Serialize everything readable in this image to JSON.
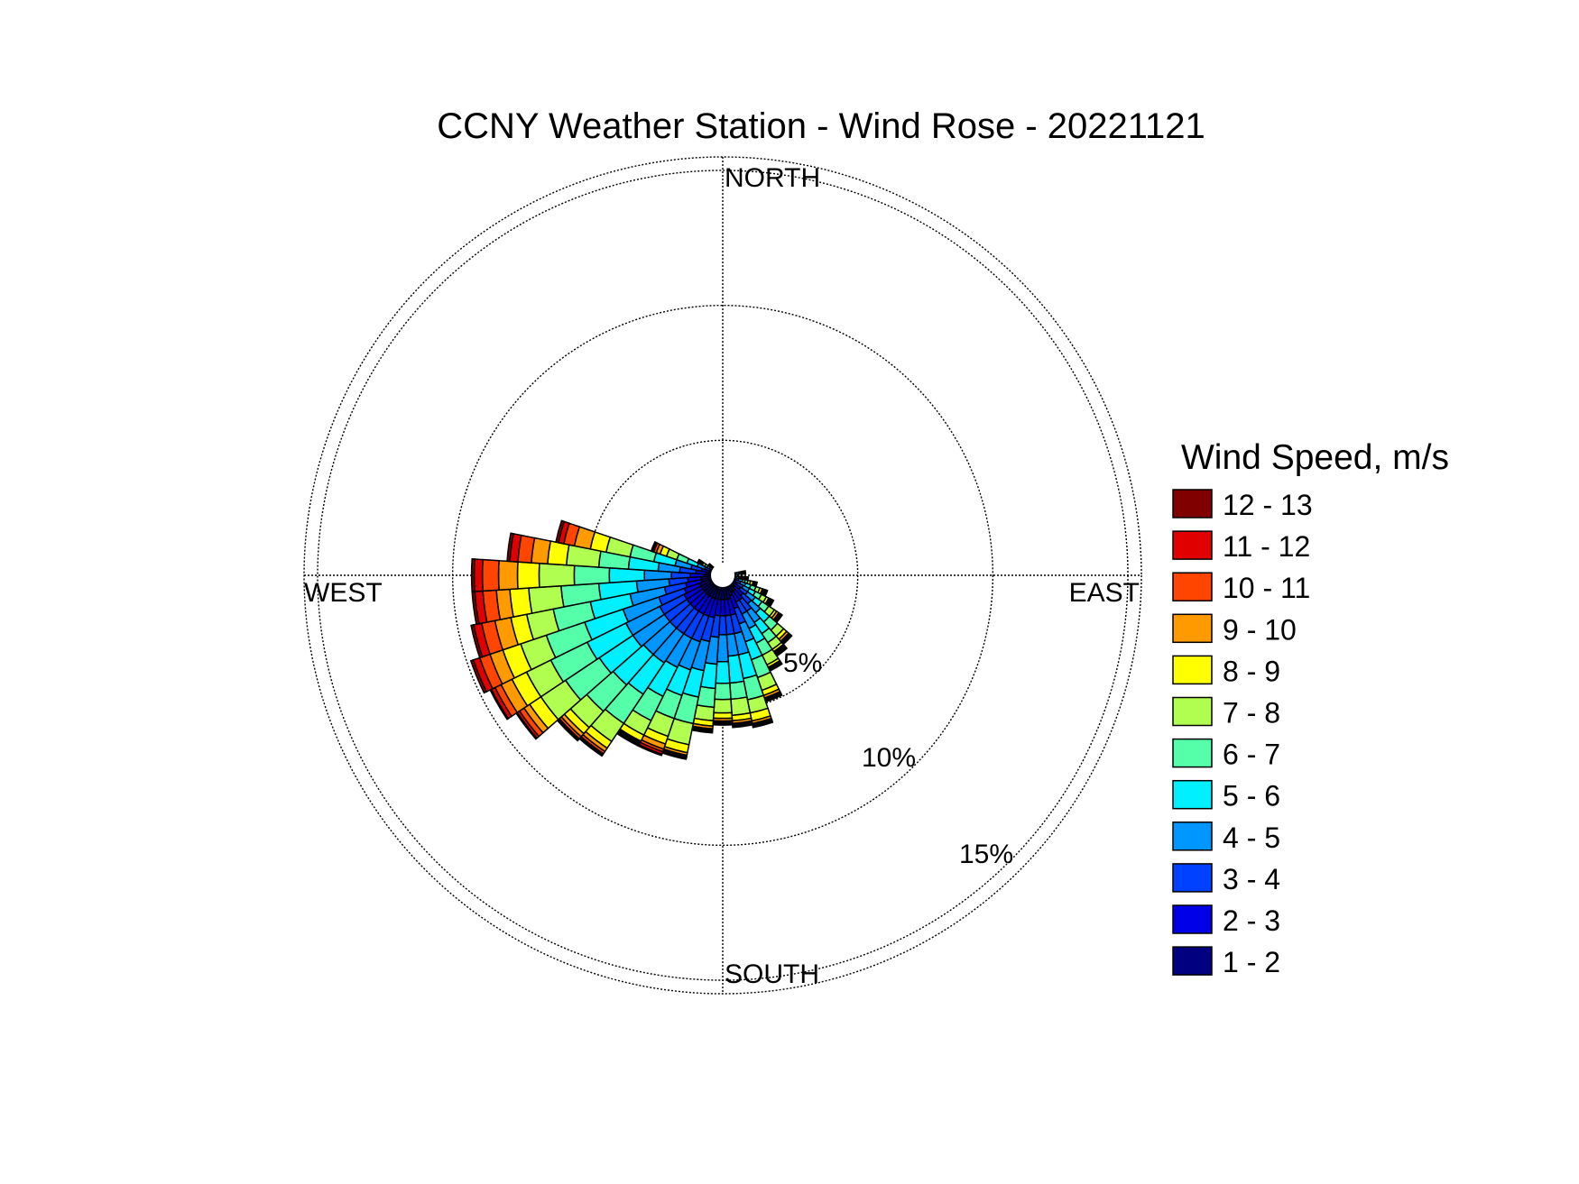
{
  "chart_data": {
    "type": "wind-rose",
    "title": "CCNY Weather Station - Wind Rose - 20221121",
    "directions": {
      "north": "NORTH",
      "south": "SOUTH",
      "east": "EAST",
      "west": "WEST"
    },
    "radial_axis": {
      "unit": "%",
      "ticks": [
        5,
        10,
        15
      ],
      "tick_labels": [
        "5%",
        "10%",
        "15%"
      ],
      "max": 15.5
    },
    "grid": true,
    "legend": {
      "title": "Wind Speed, m/s",
      "position": "right",
      "items": [
        {
          "label": "12 - 13",
          "color": "#800000"
        },
        {
          "label": "11 - 12",
          "color": "#e00000"
        },
        {
          "label": "10 - 11",
          "color": "#ff4500"
        },
        {
          "label": "9 - 10",
          "color": "#ff9a00"
        },
        {
          "label": "8 - 9",
          "color": "#ffff00"
        },
        {
          "label": "7 - 8",
          "color": "#b0ff50"
        },
        {
          "label": "6 - 7",
          "color": "#55ffaa"
        },
        {
          "label": "5 - 6",
          "color": "#00f0ff"
        },
        {
          "label": "4 - 5",
          "color": "#0096ff"
        },
        {
          "label": "3 - 4",
          "color": "#0040ff"
        },
        {
          "label": "2 - 3",
          "color": "#0000e6"
        },
        {
          "label": "1 - 2",
          "color": "#000080"
        }
      ]
    },
    "sector_width_deg": 7.5,
    "speed_bins": [
      "1 - 2",
      "2 - 3",
      "3 - 4",
      "4 - 5",
      "5 - 6",
      "6 - 7",
      "7 - 8",
      "8 - 9",
      "9 - 10",
      "10 - 11",
      "11 - 12",
      "12 - 13"
    ],
    "sectors": [
      {
        "direction_deg": 82.5,
        "cumulative_pct": [
          0.3,
          0.4,
          0.5,
          0.6,
          0.65,
          0.7,
          0.75,
          0.78,
          0.8,
          0.82,
          0.84,
          0.85
        ]
      },
      {
        "direction_deg": 97.5,
        "cumulative_pct": [
          0.3,
          0.4,
          0.5,
          0.6,
          0.65,
          0.7,
          0.75,
          0.8,
          0.85,
          0.9,
          0.93,
          0.95
        ]
      },
      {
        "direction_deg": 105,
        "cumulative_pct": [
          0.3,
          0.45,
          0.6,
          0.75,
          0.85,
          0.95,
          1.05,
          1.15,
          1.2,
          1.25,
          1.28,
          1.3
        ]
      },
      {
        "direction_deg": 112.5,
        "cumulative_pct": [
          0.3,
          0.5,
          0.7,
          0.9,
          1.1,
          1.3,
          1.45,
          1.55,
          1.6,
          1.65,
          1.7,
          1.75
        ]
      },
      {
        "direction_deg": 120,
        "cumulative_pct": [
          0.4,
          0.6,
          0.85,
          1.1,
          1.35,
          1.6,
          1.8,
          1.9,
          1.95,
          2.0,
          2.05,
          2.1
        ]
      },
      {
        "direction_deg": 127.5,
        "cumulative_pct": [
          0.5,
          0.8,
          1.1,
          1.45,
          1.75,
          2.05,
          2.3,
          2.4,
          2.5,
          2.55,
          2.6,
          2.65
        ]
      },
      {
        "direction_deg": 135,
        "cumulative_pct": [
          0.6,
          1.0,
          1.4,
          1.85,
          2.3,
          2.7,
          3.0,
          3.15,
          3.25,
          3.3,
          3.35,
          3.4
        ]
      },
      {
        "direction_deg": 142.5,
        "cumulative_pct": [
          0.7,
          1.1,
          1.6,
          2.1,
          2.6,
          3.0,
          3.3,
          3.4,
          3.45,
          3.5,
          3.55,
          3.6
        ]
      },
      {
        "direction_deg": 150,
        "cumulative_pct": [
          0.7,
          1.1,
          1.6,
          2.2,
          2.8,
          3.3,
          3.7,
          3.8,
          3.85,
          3.9,
          3.93,
          3.95
        ]
      },
      {
        "direction_deg": 157.5,
        "cumulative_pct": [
          0.8,
          1.3,
          1.9,
          2.6,
          3.3,
          4.0,
          4.5,
          4.7,
          4.8,
          4.85,
          4.9,
          4.95
        ]
      },
      {
        "direction_deg": 165,
        "cumulative_pct": [
          0.9,
          1.5,
          2.2,
          3.0,
          3.9,
          4.7,
          5.2,
          5.5,
          5.6,
          5.65,
          5.7,
          5.75
        ]
      },
      {
        "direction_deg": 172.5,
        "cumulative_pct": [
          0.9,
          1.5,
          2.2,
          3.0,
          4.0,
          4.6,
          5.2,
          5.4,
          5.5,
          5.55,
          5.6,
          5.65
        ]
      },
      {
        "direction_deg": 180,
        "cumulative_pct": [
          0.9,
          1.5,
          2.2,
          3.2,
          4.0,
          4.6,
          5.1,
          5.3,
          5.4,
          5.45,
          5.5,
          5.55
        ]
      },
      {
        "direction_deg": 187.5,
        "cumulative_pct": [
          0.9,
          1.5,
          2.3,
          3.3,
          4.2,
          4.9,
          5.4,
          5.6,
          5.7,
          5.75,
          5.8,
          5.85
        ]
      },
      {
        "direction_deg": 195,
        "cumulative_pct": [
          0.9,
          1.6,
          2.5,
          3.6,
          4.6,
          5.6,
          6.4,
          6.7,
          6.8,
          6.85,
          6.9,
          6.95
        ]
      },
      {
        "direction_deg": 202.5,
        "cumulative_pct": [
          0.9,
          1.6,
          2.6,
          3.7,
          4.7,
          5.6,
          6.3,
          6.6,
          6.8,
          6.9,
          7.0,
          7.05
        ]
      },
      {
        "direction_deg": 210,
        "cumulative_pct": [
          0.9,
          1.6,
          2.6,
          3.8,
          5.0,
          6.0,
          6.6,
          6.85,
          6.9,
          6.95,
          7.0,
          7.05
        ]
      },
      {
        "direction_deg": 217.5,
        "cumulative_pct": [
          0.9,
          1.6,
          2.6,
          3.9,
          5.3,
          6.6,
          7.4,
          7.7,
          7.85,
          7.95,
          8.0,
          8.05
        ]
      },
      {
        "direction_deg": 225,
        "cumulative_pct": [
          0.9,
          1.6,
          2.6,
          3.9,
          5.4,
          6.7,
          7.5,
          7.8,
          7.95,
          8.05,
          8.1,
          8.15
        ]
      },
      {
        "direction_deg": 232.5,
        "cumulative_pct": [
          0.9,
          1.6,
          2.6,
          4.0,
          5.5,
          7.0,
          8.1,
          8.6,
          8.85,
          9.05,
          9.15,
          9.2
        ]
      },
      {
        "direction_deg": 240,
        "cumulative_pct": [
          0.9,
          1.6,
          2.6,
          4.0,
          5.6,
          7.1,
          8.1,
          8.7,
          9.15,
          9.4,
          9.55,
          9.6
        ]
      },
      {
        "direction_deg": 247.5,
        "cumulative_pct": [
          0.9,
          1.5,
          2.5,
          3.9,
          5.4,
          6.9,
          7.9,
          8.6,
          9.1,
          9.5,
          9.75,
          9.85
        ]
      },
      {
        "direction_deg": 255,
        "cumulative_pct": [
          0.8,
          1.4,
          2.2,
          3.5,
          5.0,
          6.4,
          7.4,
          8.0,
          8.6,
          9.1,
          9.4,
          9.5
        ]
      },
      {
        "direction_deg": 262.5,
        "cumulative_pct": [
          0.8,
          1.3,
          2.0,
          3.2,
          4.6,
          6.0,
          7.2,
          7.9,
          8.4,
          8.9,
          9.2,
          9.3
        ]
      },
      {
        "direction_deg": 270,
        "cumulative_pct": [
          0.7,
          1.2,
          1.9,
          2.9,
          4.2,
          5.5,
          6.8,
          7.6,
          8.3,
          8.9,
          9.2,
          9.3
        ]
      },
      {
        "direction_deg": 277.5,
        "cumulative_pct": [
          0.6,
          1.0,
          1.6,
          2.4,
          3.5,
          4.6,
          5.8,
          6.5,
          7.1,
          7.6,
          7.9,
          8.0
        ]
      },
      {
        "direction_deg": 285,
        "cumulative_pct": [
          0.5,
          0.8,
          1.2,
          1.8,
          2.6,
          3.5,
          4.4,
          5.0,
          5.6,
          6.0,
          6.2,
          6.3
        ]
      },
      {
        "direction_deg": 292.5,
        "cumulative_pct": [
          0.3,
          0.5,
          0.7,
          1.0,
          1.4,
          1.8,
          2.2,
          2.45,
          2.6,
          2.7,
          2.75,
          2.8
        ]
      },
      {
        "direction_deg": 300,
        "cumulative_pct": [
          0.25,
          0.35,
          0.45,
          0.55,
          0.65,
          0.75,
          0.85,
          0.9,
          0.95,
          1.0,
          1.03,
          1.05
        ]
      },
      {
        "direction_deg": 307.5,
        "cumulative_pct": [
          0.25,
          0.3,
          0.35,
          0.4,
          0.45,
          0.5,
          0.55,
          0.58,
          0.6,
          0.62,
          0.63,
          0.65
        ]
      }
    ]
  }
}
